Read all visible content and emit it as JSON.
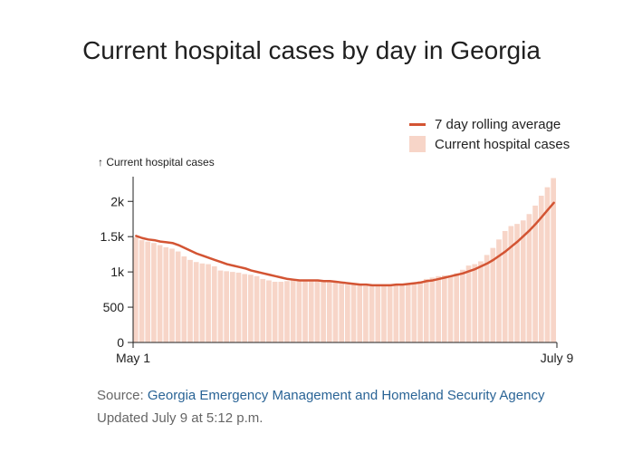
{
  "title": "Current hospital cases by day in Georgia",
  "legend": {
    "line_label": "7 day rolling average",
    "bar_label": "Current hospital cases"
  },
  "source": {
    "prefix": "Source:",
    "link_text": "Georgia Emergency Management and Homeland Security Agency",
    "updated": "Updated July 9 at 5:12 p.m."
  },
  "chart_data": {
    "type": "bar",
    "title": "Current hospital cases by day in Georgia",
    "ylabel": "↑ Current hospital cases",
    "xlabel": "",
    "x_tick_labels": [
      "May 1",
      "July 9"
    ],
    "y_ticks": [
      0,
      500,
      1000,
      1500,
      2000
    ],
    "y_tick_labels": [
      "0",
      "500",
      "1k",
      "1.5k",
      "2k"
    ],
    "ylim": [
      0,
      2350
    ],
    "start_date": "May 1",
    "end_date": "July 9",
    "colors": {
      "line": "#d35433",
      "bar": "#f7d5c8"
    },
    "series": [
      {
        "name": "Current hospital cases",
        "type": "bar",
        "values": [
          1490,
          1450,
          1430,
          1410,
          1380,
          1350,
          1330,
          1290,
          1220,
          1170,
          1140,
          1120,
          1110,
          1080,
          1020,
          1010,
          1000,
          990,
          970,
          960,
          940,
          900,
          880,
          860,
          860,
          870,
          890,
          880,
          890,
          880,
          870,
          870,
          860,
          850,
          840,
          820,
          820,
          810,
          800,
          800,
          800,
          810,
          810,
          810,
          820,
          830,
          850,
          870,
          900,
          920,
          940,
          950,
          950,
          980,
          1030,
          1090,
          1110,
          1150,
          1240,
          1340,
          1460,
          1580,
          1650,
          1680,
          1730,
          1820,
          1940,
          2080,
          2200,
          2330
        ]
      },
      {
        "name": "7 day rolling average",
        "type": "line",
        "values": [
          1510,
          1480,
          1460,
          1450,
          1430,
          1420,
          1410,
          1380,
          1340,
          1300,
          1260,
          1230,
          1200,
          1170,
          1140,
          1110,
          1090,
          1070,
          1050,
          1020,
          1000,
          980,
          960,
          940,
          920,
          900,
          890,
          880,
          880,
          880,
          880,
          870,
          870,
          860,
          850,
          840,
          830,
          820,
          820,
          810,
          810,
          810,
          810,
          820,
          820,
          830,
          840,
          850,
          870,
          880,
          900,
          920,
          940,
          960,
          980,
          1010,
          1040,
          1080,
          1120,
          1170,
          1230,
          1290,
          1360,
          1430,
          1510,
          1590,
          1680,
          1780,
          1880,
          1980
        ]
      }
    ]
  }
}
